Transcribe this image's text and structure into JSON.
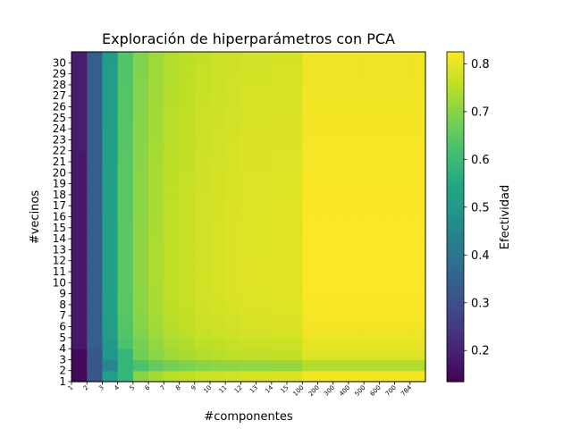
{
  "chart_data": {
    "type": "heatmap",
    "title": "Exploración de hiperparámetros con PCA",
    "xlabel": "#componentes",
    "ylabel": "#vecinos",
    "colorbar_label": "Efectividad",
    "colormap": "viridis",
    "vmin": 0.135,
    "vmax": 0.825,
    "x_categories": [
      "1",
      "2",
      "3",
      "4",
      "5",
      "6",
      "7",
      "8",
      "9",
      "10",
      "11",
      "12",
      "13",
      "14",
      "15",
      "100",
      "200",
      "300",
      "400",
      "500",
      "600",
      "700",
      "784"
    ],
    "y_categories": [
      "1",
      "2",
      "3",
      "4",
      "5",
      "6",
      "7",
      "8",
      "9",
      "10",
      "11",
      "12",
      "13",
      "14",
      "15",
      "16",
      "17",
      "18",
      "19",
      "20",
      "21",
      "22",
      "23",
      "24",
      "25",
      "26",
      "27",
      "28",
      "29",
      "30"
    ],
    "colorbar_ticks": [
      "0.2",
      "0.3",
      "0.4",
      "0.5",
      "0.6",
      "0.7",
      "0.8"
    ],
    "colorbar_tick_values": [
      0.2,
      0.3,
      0.4,
      0.5,
      0.6,
      0.7,
      0.8
    ],
    "column_base_values": [
      0.18,
      0.34,
      0.52,
      0.64,
      0.7,
      0.73,
      0.75,
      0.76,
      0.77,
      0.775,
      0.78,
      0.785,
      0.785,
      0.787,
      0.787,
      0.815,
      0.815,
      0.815,
      0.815,
      0.815,
      0.815,
      0.815,
      0.815
    ],
    "row_adjustments": [
      0,
      -0.07,
      -0.025,
      -0.015,
      -0.005,
      0,
      0.004,
      0.006,
      0.007,
      0.008,
      0.008,
      0.008,
      0.008,
      0.007,
      0.007,
      0.006,
      0.006,
      0.005,
      0.005,
      0.004,
      0.003,
      0.002,
      0.001,
      0,
      -0.001,
      -0.002,
      -0.003,
      -0.004,
      -0.005,
      -0.006
    ]
  }
}
